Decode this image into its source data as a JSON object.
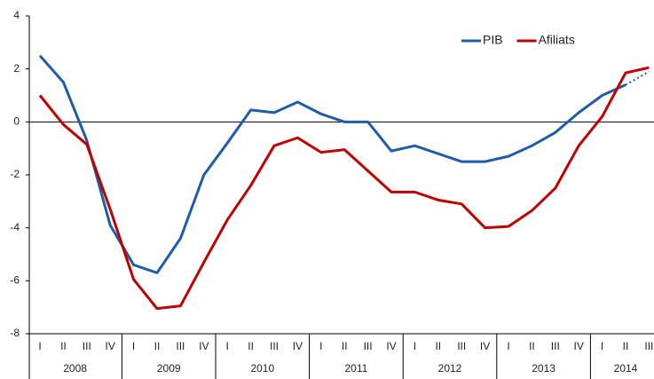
{
  "chart_data": {
    "type": "line",
    "category_groups": [
      {
        "label": "2008",
        "categories": [
          "I",
          "II",
          "III",
          "IV"
        ]
      },
      {
        "label": "2009",
        "categories": [
          "I",
          "II",
          "III",
          "IV"
        ]
      },
      {
        "label": "2010",
        "categories": [
          "I",
          "II",
          "III",
          "IV"
        ]
      },
      {
        "label": "2011",
        "categories": [
          "I",
          "II",
          "III",
          "IV"
        ]
      },
      {
        "label": "2012",
        "categories": [
          "I",
          "II",
          "III",
          "IV"
        ]
      },
      {
        "label": "2013",
        "categories": [
          "I",
          "II",
          "III",
          "IV"
        ]
      },
      {
        "label": "2014",
        "categories": [
          "I",
          "II",
          "III"
        ]
      }
    ],
    "series": [
      {
        "name": "PIB",
        "color": "#1f5ca8",
        "dotted_last_segment": true,
        "values": [
          2.5,
          1.5,
          -0.7,
          -3.9,
          -5.4,
          -5.7,
          -4.4,
          -2.0,
          -0.8,
          0.45,
          0.35,
          0.75,
          0.3,
          0.0,
          0.0,
          -1.1,
          -0.9,
          -1.2,
          -1.5,
          -1.5,
          -1.3,
          -0.9,
          -0.4,
          0.35,
          1.0,
          1.4,
          1.9
        ]
      },
      {
        "name": "Afiliats",
        "color": "#c00000",
        "values": [
          1.0,
          -0.1,
          -0.85,
          -3.3,
          -5.95,
          -7.05,
          -6.95,
          -5.3,
          -3.7,
          -2.4,
          -0.9,
          -0.6,
          -1.15,
          -1.05,
          -1.85,
          -2.65,
          -2.65,
          -2.95,
          -3.1,
          -4.0,
          -3.95,
          -3.35,
          -2.5,
          -0.9,
          0.2,
          1.85,
          2.05
        ]
      }
    ],
    "ylim": [
      -8,
      4
    ],
    "yticks": [
      -8,
      -6,
      -4,
      -2,
      0,
      2,
      4
    ],
    "legend": "top-right"
  }
}
